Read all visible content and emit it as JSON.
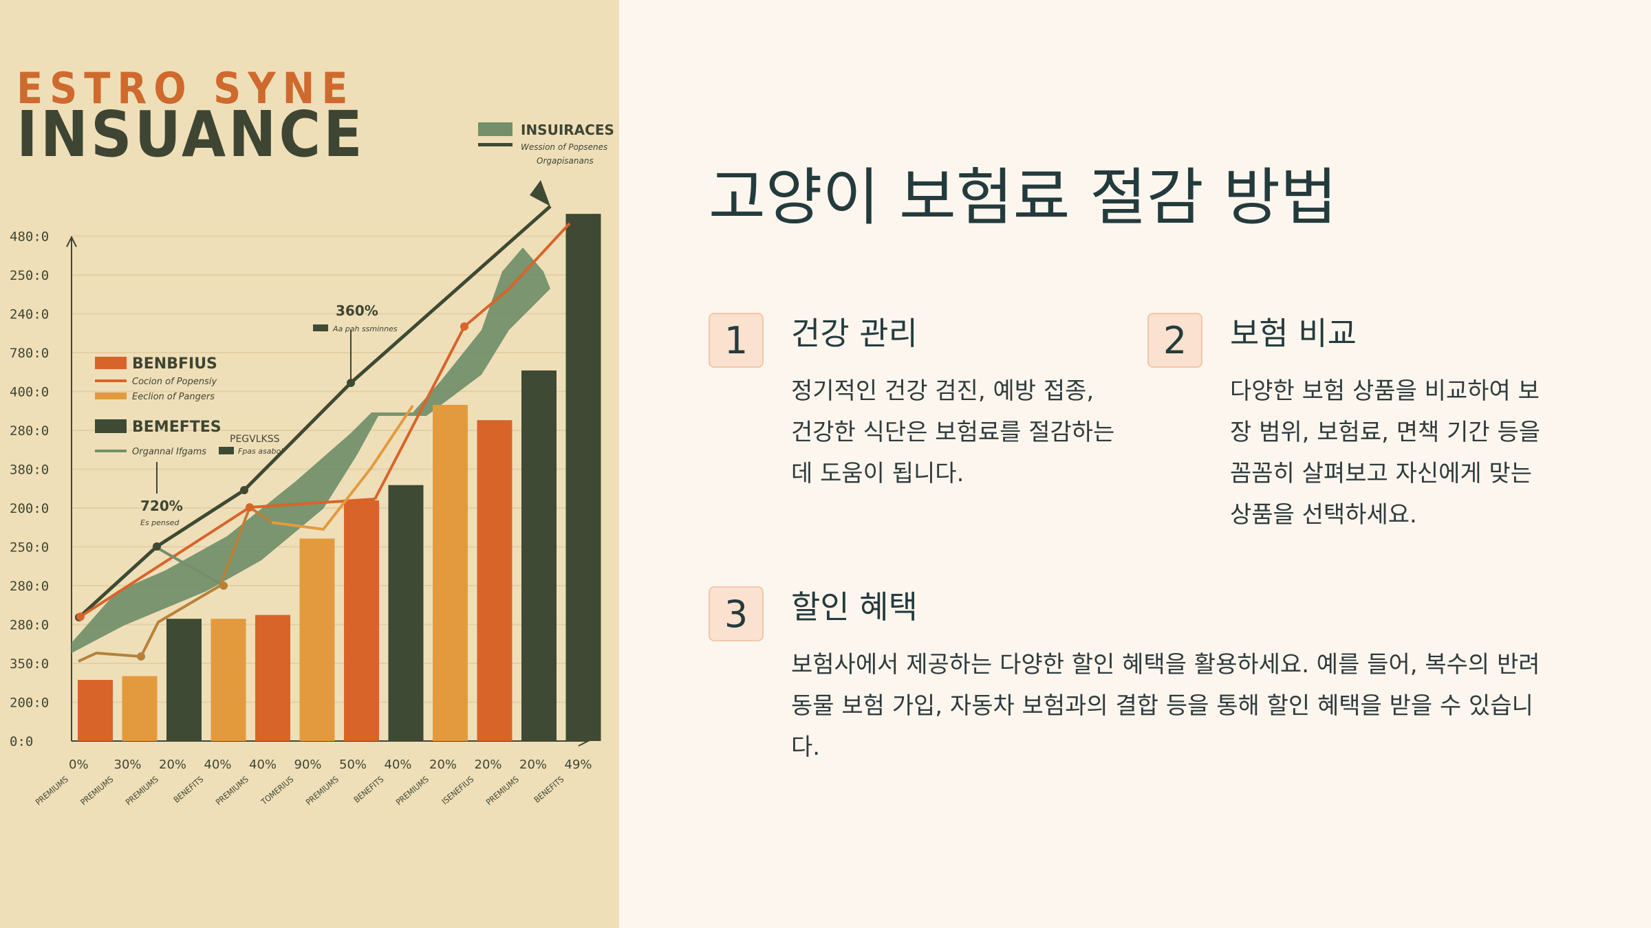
{
  "logo": {
    "line1": "ESTRO SYNE",
    "line2": "INSUANCE"
  },
  "slide": {
    "title": "고양이 보험료 절감 방법"
  },
  "items": [
    {
      "num": "1",
      "title": "건강 관리",
      "desc": "정기적인 건강 검진, 예방 접종, 건강한 식단은 보험료를 절감하는 데 도움이 됩니다."
    },
    {
      "num": "2",
      "title": "보험 비교",
      "desc": "다양한 보험 상품을 비교하여 보장 범위, 보험료, 면책 기간 등을 꼼꼼히 살펴보고 자신에게 맞는 상품을 선택하세요."
    },
    {
      "num": "3",
      "title": "할인 혜택",
      "desc": "보험사에서 제공하는 다양한 할인 혜택을 활용하세요. 예를 들어, 복수의 반려동물 보험 가입, 자동차 보험과의 결합 등을 통해 할인 혜택을 받을 수 있습니다."
    }
  ],
  "colors": {
    "orange": "#d8642a",
    "amber": "#e39a3e",
    "dark": "#3e4a33",
    "green": "#73906a",
    "bg_left": "#efdfb9",
    "bg_right": "#fdf6ef",
    "title": "#243b3d"
  },
  "chart_data": {
    "type": "bar",
    "y_tick_labels": [
      "0:0",
      "200:0",
      "350:0",
      "280:0",
      "280:0",
      "250:0",
      "200:0",
      "380:0",
      "280:0",
      "400:0",
      "780:0",
      "240:0",
      "250:0",
      "480:0"
    ],
    "x_tick_labels": [
      "0%",
      "30%",
      "20%",
      "40%",
      "40%",
      "90%",
      "50%",
      "40%",
      "20%",
      "20%",
      "20%",
      "49%"
    ],
    "x_category_labels": [
      "PREMIUMS",
      "PREMIUMS",
      "PREMIUMS",
      "BENEFITS",
      "PREMIUMS",
      "TOMERIUS",
      "PREMIUMS",
      "BENEFITS",
      "PREMIUMS",
      "ISENEFIUS",
      "PREMIUMS",
      "BENEFITS"
    ],
    "bars": [
      {
        "label": "b1",
        "value": 16,
        "color": "#d8642a"
      },
      {
        "label": "b2",
        "value": 17,
        "color": "#e39a3e"
      },
      {
        "label": "b3",
        "value": 32,
        "color": "#3e4a33"
      },
      {
        "label": "b4",
        "value": 32,
        "color": "#e39a3e"
      },
      {
        "label": "b5",
        "value": 33,
        "color": "#d8642a"
      },
      {
        "label": "b6",
        "value": 53,
        "color": "#e39a3e"
      },
      {
        "label": "b7",
        "value": 63,
        "color": "#d8642a"
      },
      {
        "label": "b8",
        "value": 67,
        "color": "#3e4a33"
      },
      {
        "label": "b9",
        "value": 88,
        "color": "#e39a3e"
      },
      {
        "label": "b10",
        "value": 84,
        "color": "#d8642a"
      },
      {
        "label": "b11",
        "value": 97,
        "color": "#3e4a33"
      },
      {
        "label": "b12",
        "value": 138,
        "color": "#3e4a33"
      }
    ],
    "legend_top": {
      "label": "INSUIRACES",
      "sub1": "Wession of Popsenes",
      "sub2": "Orgapisanans"
    },
    "legend_left": [
      {
        "label": "BENBFIUS",
        "type": "box",
        "color": "#d8642a"
      },
      {
        "label": "Cocion of Popensiy",
        "type": "line",
        "color": "#d8642a"
      },
      {
        "label": "Eeclion of Pangers",
        "type": "box-thin",
        "color": "#e39a3e"
      },
      {
        "label": "BEMEFTES",
        "type": "box",
        "color": "#3e4a33"
      },
      {
        "label": "Organnal Ifgams",
        "type": "line",
        "color": "#73906a"
      }
    ],
    "annotations": [
      {
        "label": "360%",
        "sub": "Aa pah ssminnes"
      },
      {
        "label": "720%",
        "sub": "Es pensed"
      },
      {
        "label": "PEGVLKSS",
        "sub": "Fpas asabol"
      }
    ],
    "ylim": [
      0,
      140
    ]
  }
}
